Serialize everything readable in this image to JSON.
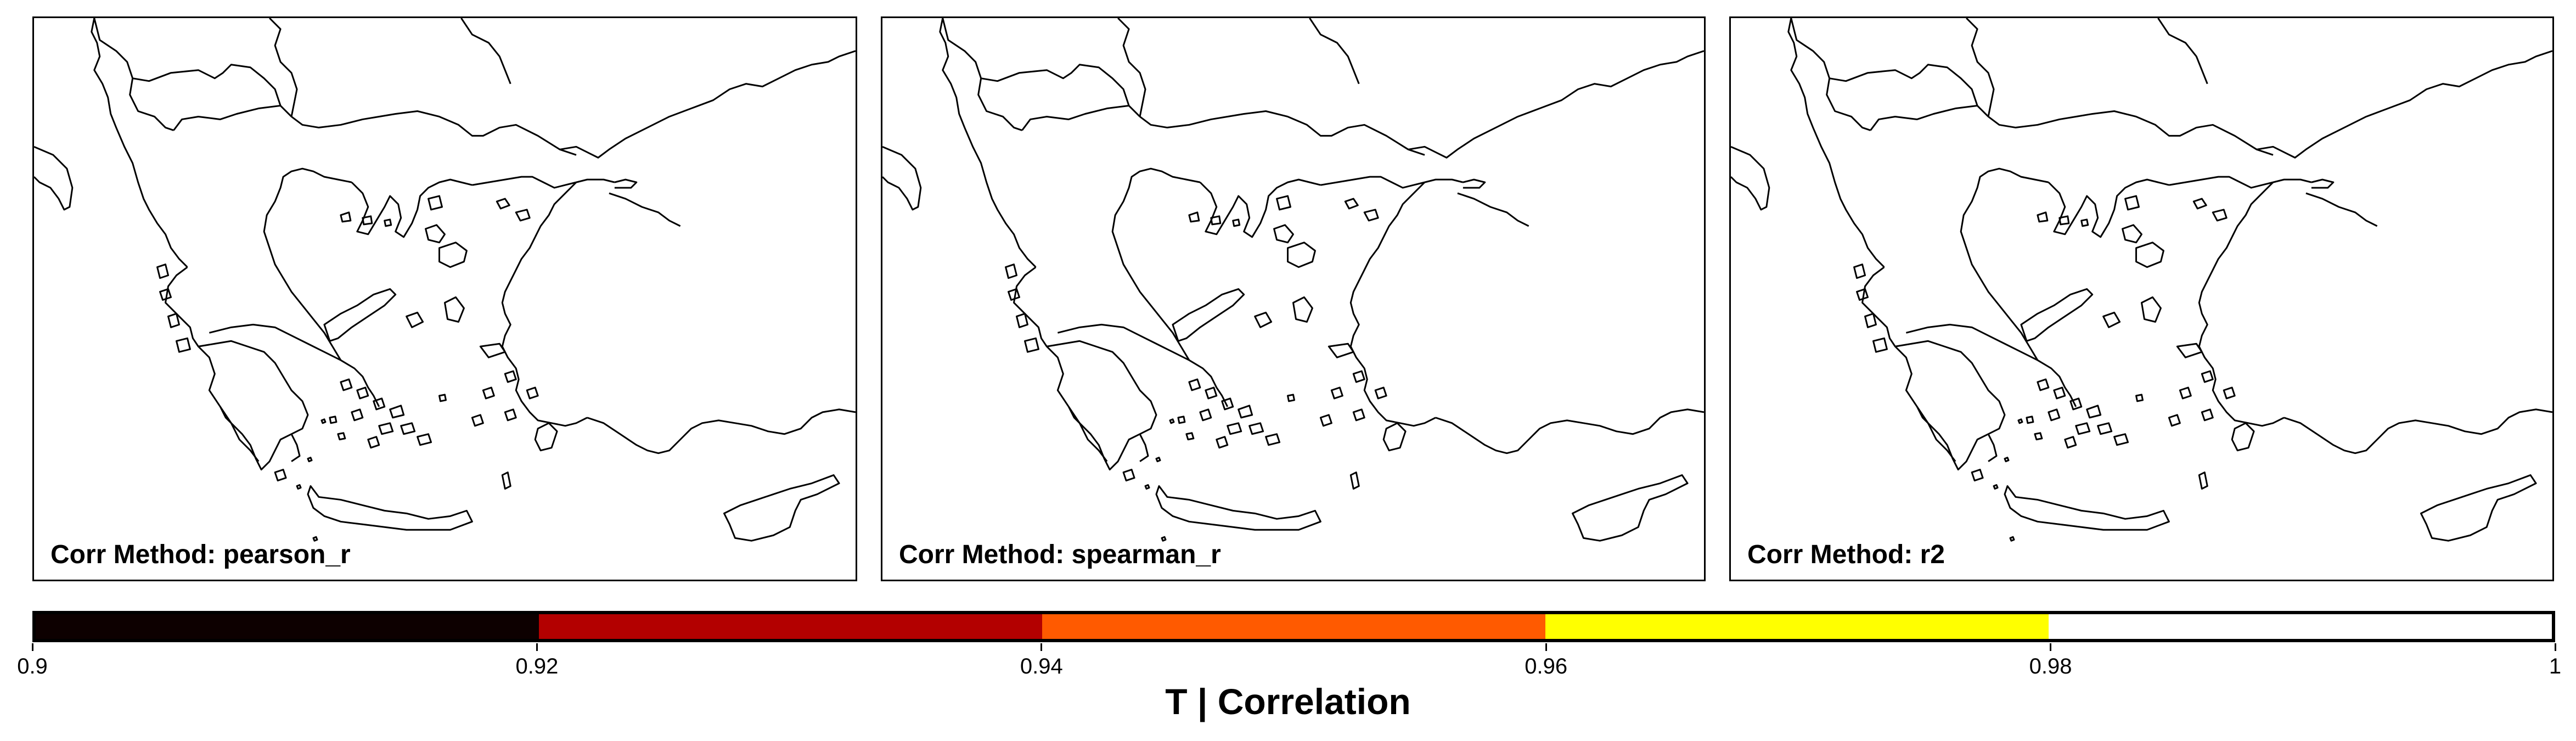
{
  "panels": [
    {
      "label_prefix": "Corr Method: ",
      "method": "pearson_r"
    },
    {
      "label_prefix": "Corr Method: ",
      "method": "spearman_r"
    },
    {
      "label_prefix": "Corr Method: ",
      "method": "r2"
    }
  ],
  "colorbar": {
    "title": "T | Correlation",
    "ticks": [
      "0.9",
      "0.92",
      "0.94",
      "0.96",
      "0.98",
      "1"
    ],
    "bins": [
      {
        "from": 0.9,
        "to": 0.92,
        "color": "#0d0000"
      },
      {
        "from": 0.92,
        "to": 0.94,
        "color": "#b30000"
      },
      {
        "from": 0.94,
        "to": 0.96,
        "color": "#ff5a00"
      },
      {
        "from": 0.96,
        "to": 0.98,
        "color": "#ffff00"
      },
      {
        "from": 0.98,
        "to": 1.0,
        "color": "#ffffff"
      }
    ]
  },
  "map": {
    "region": "Greece and Aegean Sea",
    "line_color": "#000000",
    "background": "#ffffff"
  }
}
